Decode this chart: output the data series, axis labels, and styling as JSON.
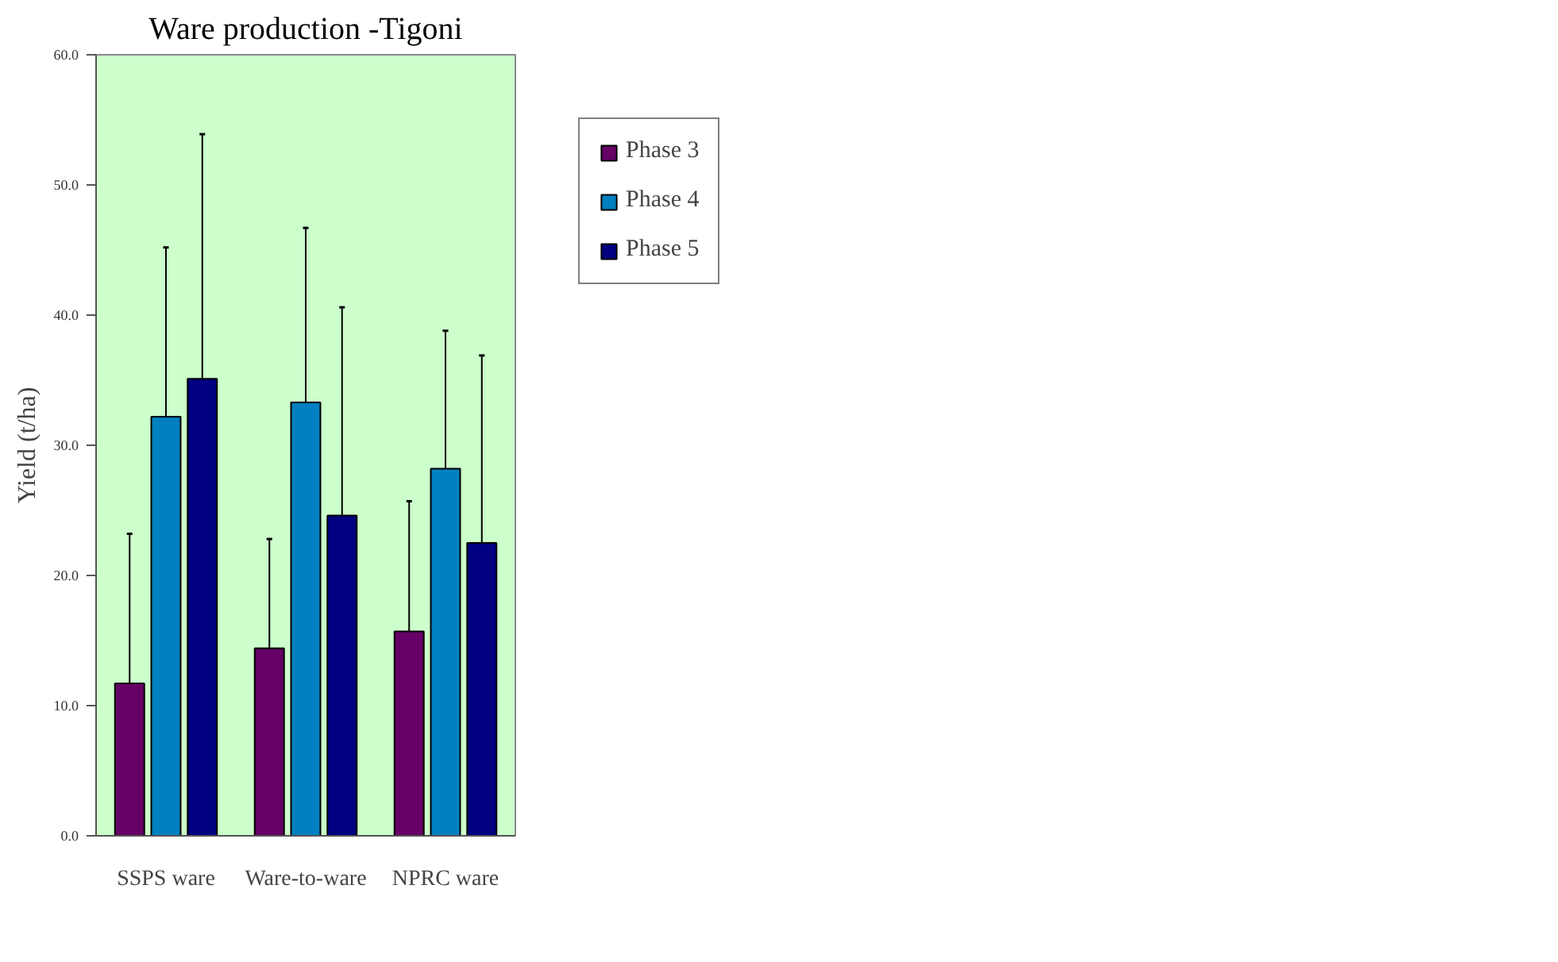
{
  "chart_data": {
    "type": "bar",
    "title": "Ware production -Tigoni",
    "ylabel": "Yield (t/ha)",
    "categories": [
      "SSPS ware",
      "Ware-to-ware",
      "NPRC ware"
    ],
    "series": [
      {
        "name": "Phase 3",
        "color": "#660066",
        "values": [
          11.7,
          14.4,
          15.7
        ],
        "errors": [
          [
            11.7,
            23.2
          ],
          [
            14.4,
            22.8
          ],
          [
            15.7,
            25.7
          ]
        ]
      },
      {
        "name": "Phase 4",
        "color": "#0080c0",
        "values": [
          32.2,
          33.3,
          28.2
        ],
        "errors": [
          [
            32.2,
            45.2
          ],
          [
            33.3,
            46.7
          ],
          [
            28.2,
            38.8
          ]
        ]
      },
      {
        "name": "Phase 5",
        "color": "#000080",
        "values": [
          35.1,
          24.6,
          22.5
        ],
        "errors": [
          [
            35.1,
            53.9
          ],
          [
            24.6,
            40.6
          ],
          [
            22.5,
            36.9
          ]
        ]
      }
    ],
    "ylim": [
      0,
      60
    ],
    "yticks": [
      {
        "value": 0,
        "label": "0.0"
      },
      {
        "value": 10,
        "label": "10.0"
      },
      {
        "value": 20,
        "label": "20.0"
      },
      {
        "value": 30,
        "label": "30.0"
      },
      {
        "value": 40,
        "label": "40.0"
      },
      {
        "value": 50,
        "label": "50.0"
      },
      {
        "value": 60,
        "label": "60.0"
      }
    ],
    "grid": false,
    "legend": "right"
  }
}
